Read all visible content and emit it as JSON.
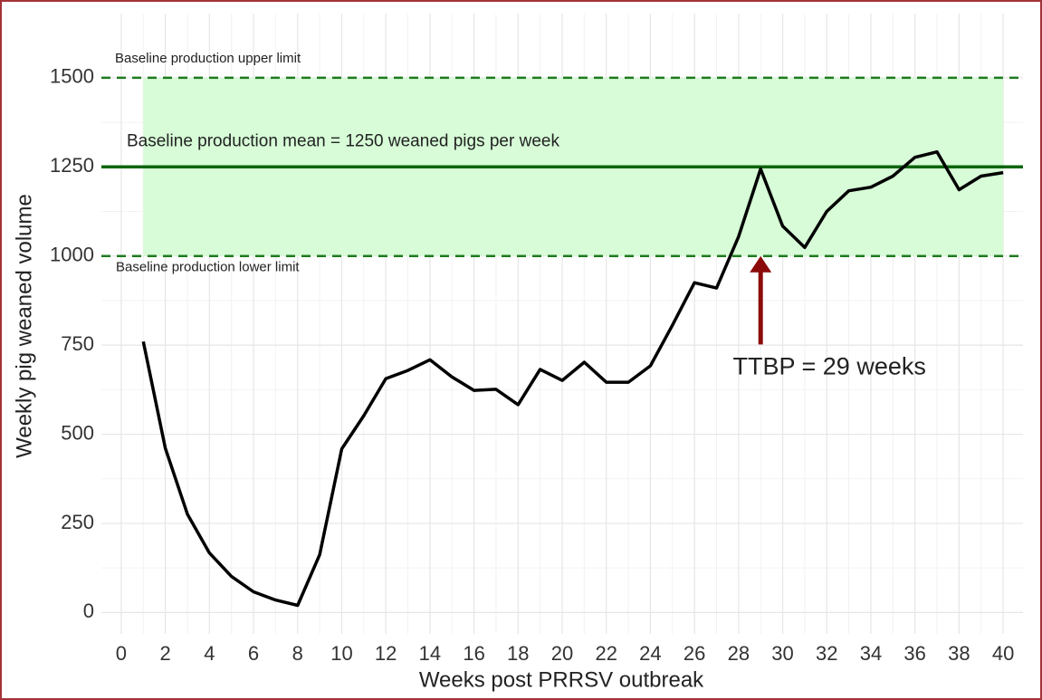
{
  "chart_data": {
    "type": "line",
    "x_label": "Weeks post PRRSV outbreak",
    "y_label": "Weekly pig weaned volume",
    "x": [
      1,
      2,
      3,
      4,
      5,
      6,
      7,
      8,
      9,
      10,
      11,
      12,
      13,
      14,
      15,
      16,
      17,
      18,
      19,
      20,
      21,
      22,
      23,
      24,
      25,
      26,
      27,
      28,
      29,
      30,
      31,
      32,
      33,
      34,
      35,
      36,
      37,
      38,
      39,
      40
    ],
    "values": [
      760,
      461,
      276,
      167,
      101,
      58,
      35,
      20,
      162,
      459,
      552,
      656,
      679,
      709,
      661,
      623,
      626,
      583,
      682,
      651,
      702,
      646,
      646,
      692,
      806,
      925,
      910,
      1054,
      1244,
      1084,
      1024,
      1125,
      1183,
      1193,
      1224,
      1277,
      1292,
      1186,
      1224,
      1234
    ],
    "color": "#000000",
    "xlim": [
      -0.9,
      40.9
    ],
    "ylim": [
      -60,
      1680
    ],
    "xticks": [
      0,
      2,
      4,
      6,
      8,
      10,
      12,
      14,
      16,
      18,
      20,
      22,
      24,
      26,
      28,
      30,
      32,
      34,
      36,
      38,
      40
    ],
    "yticks": [
      0,
      250,
      500,
      750,
      1000,
      1250,
      1500
    ],
    "grid": true,
    "band": {
      "x": [
        1,
        40
      ],
      "y": [
        1000,
        1500
      ],
      "color": "#d7fcd7"
    },
    "reference_lines": [
      {
        "y": 1500,
        "style": "dashed",
        "color": "#1f7a1f",
        "label": "Baseline production upper limit"
      },
      {
        "y": 1250,
        "style": "solid",
        "color": "#0b650b",
        "label": "Baseline production mean = 1250 weaned pigs per week"
      },
      {
        "y": 1000,
        "style": "dashed",
        "color": "#1f7a1f",
        "label": "Baseline production lower limit"
      }
    ],
    "arrow": {
      "x": 29,
      "y": [
        752,
        1000
      ],
      "color": "#8b0a0a",
      "label": "TTBP = 29 weeks"
    }
  }
}
